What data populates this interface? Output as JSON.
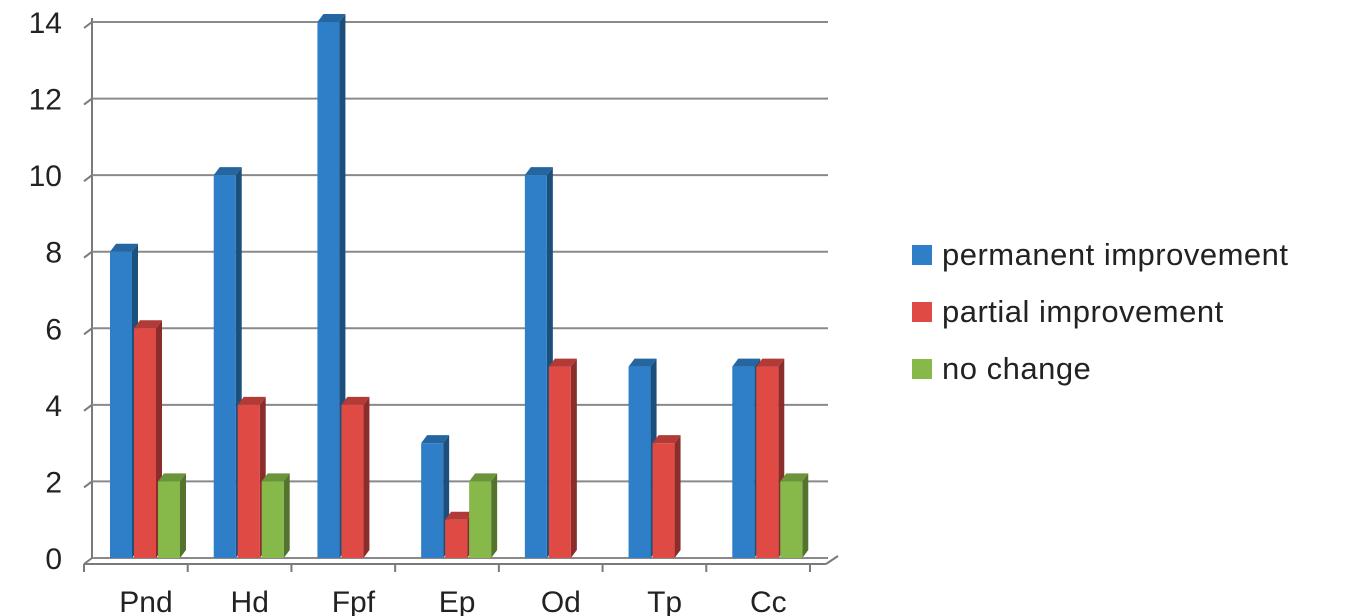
{
  "chart_data": {
    "type": "bar",
    "categories": [
      "Pnd",
      "Hd",
      "Fpf",
      "Ep",
      "Od",
      "Tp",
      "Cc"
    ],
    "series": [
      {
        "name": "permanent improvement",
        "color": "#2f7fc8",
        "values": [
          8,
          10,
          14,
          3,
          10,
          5,
          5
        ]
      },
      {
        "name": "partial improvement",
        "color": "#e04a45",
        "values": [
          6,
          4,
          4,
          1,
          5,
          3,
          5
        ]
      },
      {
        "name": "no change",
        "color": "#86b94a",
        "values": [
          2,
          2,
          0,
          2,
          0,
          0,
          2
        ]
      }
    ],
    "ylim": [
      0,
      14
    ],
    "yticks": [
      0,
      2,
      4,
      6,
      8,
      10,
      12,
      14
    ],
    "grid": true,
    "legend_position": "right",
    "style": "3d"
  }
}
